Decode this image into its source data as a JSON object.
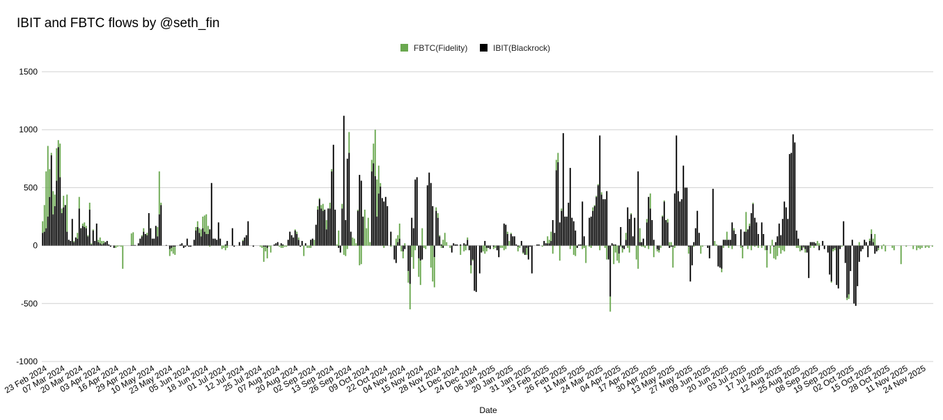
{
  "chart_data": {
    "type": "bar",
    "stacked": true,
    "title": "IBIT and FBTC flows by @seth_fin",
    "xlabel": "Date",
    "ylabel": "",
    "ylim": [
      -1000,
      1500
    ],
    "yticks": [
      -1000,
      -500,
      0,
      500,
      1000,
      1500
    ],
    "grid": true,
    "legend_position": "top-center",
    "x_tick_labels": [
      "23 Feb 2024",
      "07 Mar 2024",
      "20 Mar 2024",
      "03 Apr 2024",
      "16 Apr 2024",
      "29 Apr 2024",
      "10 May 2024",
      "23 May 2024",
      "05 Jun 2024",
      "18 Jun 2024",
      "01 Jul 2024",
      "12 Jul 2024",
      "25 Jul 2024",
      "07 Aug 2024",
      "20 Aug 2024",
      "02 Sep 2024",
      "13 Sep 2024",
      "26 Sep 2024",
      "09 Oct 2024",
      "22 Oct 2024",
      "04 Nov 2024",
      "15 Nov 2024",
      "28 Nov 2024",
      "11 Dec 2024",
      "24 Dec 2024",
      "06 Jan 2025",
      "20 Jan 2025",
      "31 Jan 2025",
      "13 Feb 2025",
      "26 Feb 2025",
      "11 Mar 2025",
      "24 Mar 2025",
      "04 Apr 2025",
      "17 Apr 2025",
      "30 Apr 2025",
      "13 May 2025",
      "27 May 2025",
      "09 Jun 2025",
      "20 Jun 2025",
      "03 Jul 2025",
      "17 Jul 2025",
      "12 Aug 2025",
      "25 Aug 2025",
      "08 Sep 2025",
      "19 Sep 2025",
      "02 Oct 2025",
      "15 Oct 2025",
      "28 Oct 2025",
      "11 Nov 2025",
      "24 Nov 2025"
    ],
    "series": [
      {
        "name": "IBIT(Blackrock)",
        "color": "#000000",
        "values": [
          110,
          120,
          150,
          250,
          420,
          780,
          270,
          340,
          560,
          850,
          590,
          280,
          330,
          350,
          120,
          50,
          40,
          230,
          30,
          70,
          60,
          320,
          150,
          170,
          160,
          150,
          80,
          310,
          10,
          130,
          40,
          190,
          30,
          20,
          10,
          20,
          30,
          40,
          10,
          -10,
          0,
          -20,
          0,
          0,
          0,
          0,
          0,
          0,
          0,
          0,
          0,
          5,
          5,
          5,
          0,
          20,
          60,
          80,
          120,
          100,
          90,
          280,
          150,
          60,
          60,
          170,
          80,
          270,
          350,
          0,
          0,
          5,
          0,
          -30,
          -20,
          -10,
          -10,
          0,
          0,
          10,
          20,
          -20,
          -10,
          60,
          -10,
          -10,
          0,
          50,
          130,
          160,
          110,
          80,
          150,
          120,
          100,
          100,
          140,
          540,
          60,
          60,
          50,
          200,
          60,
          0,
          0,
          10,
          40,
          0,
          0,
          150,
          -10,
          0,
          0,
          30,
          0,
          40,
          70,
          90,
          210,
          0,
          0,
          -10,
          0,
          0,
          0,
          0,
          0,
          -10,
          -10,
          -20,
          0,
          0,
          0,
          10,
          20,
          30,
          0,
          20,
          10,
          0,
          0,
          50,
          120,
          90,
          70,
          130,
          100,
          50,
          -10,
          40,
          0,
          20,
          0,
          0,
          50,
          60,
          0,
          180,
          310,
          400,
          320,
          300,
          310,
          140,
          320,
          320,
          640,
          870,
          310,
          0,
          -20,
          -60,
          320,
          1120,
          220,
          750,
          800,
          120,
          0,
          0,
          0,
          300,
          610,
          560,
          250,
          0,
          0,
          0,
          0,
          640,
          710,
          600,
          250,
          450,
          510,
          410,
          380,
          420,
          340,
          0,
          120,
          0,
          -120,
          -150,
          30,
          60,
          0,
          -50,
          -30,
          0,
          -220,
          -330,
          240,
          150,
          570,
          590,
          -110,
          -130,
          -120,
          0,
          0,
          520,
          630,
          540,
          340,
          -100,
          300,
          240,
          80,
          10,
          -20,
          0,
          0,
          0,
          0,
          -60,
          20,
          10,
          10,
          0,
          10,
          0,
          20,
          10,
          50,
          -40,
          -170,
          -120,
          -390,
          -400,
          0,
          -240,
          -60,
          0,
          40,
          -20,
          -20,
          -30,
          0,
          -10,
          0,
          -40,
          -100,
          0,
          0,
          190,
          180,
          100,
          0,
          100,
          80,
          80,
          10,
          -10,
          0,
          40,
          -60,
          -80,
          -20,
          -120,
          -10,
          -240,
          0,
          0,
          10,
          10,
          0,
          0,
          40,
          20,
          20,
          20,
          40,
          220,
          110,
          650,
          720,
          200,
          300,
          970,
          250,
          250,
          370,
          670,
          240,
          210,
          130,
          -20,
          10,
          10,
          380,
          80,
          0,
          0,
          240,
          250,
          300,
          340,
          420,
          520,
          950,
          440,
          400,
          400,
          470,
          -120,
          -440,
          20,
          10,
          10,
          0,
          -70,
          160,
          -20,
          -30,
          50,
          330,
          230,
          270,
          80,
          240,
          0,
          640,
          30,
          30,
          60,
          0,
          200,
          420,
          320,
          220,
          50,
          0,
          -30,
          -40,
          0,
          250,
          380,
          220,
          200,
          -20,
          -10,
          -10,
          450,
          950,
          470,
          380,
          400,
          690,
          500,
          500,
          -10,
          -310,
          -170,
          30,
          150,
          300,
          110,
          0,
          0,
          0,
          0,
          -20,
          -110,
          0,
          490,
          0,
          0,
          -180,
          -190,
          -200,
          50,
          50,
          50,
          50,
          50,
          200,
          130,
          100,
          0,
          0,
          140,
          -10,
          120,
          120,
          140,
          170,
          280,
          360,
          240,
          200,
          100,
          0,
          200,
          100,
          0,
          -40,
          0,
          0,
          0,
          -10,
          30,
          80,
          190,
          90,
          230,
          380,
          330,
          230,
          790,
          800,
          960,
          890,
          130,
          60,
          0,
          -40,
          -10,
          -30,
          -60,
          -280,
          30,
          30,
          30,
          20,
          0,
          -40,
          0,
          40,
          -30,
          0,
          -60,
          -250,
          -310,
          -30,
          -20,
          -340,
          -370,
          -30,
          0,
          210,
          -150,
          -450,
          -420,
          -220,
          50,
          -500,
          -520,
          -350,
          -140,
          -50,
          -30,
          50,
          30,
          -100,
          40,
          100,
          30,
          -70,
          -50,
          -20
        ],
        "visible_in_legend": true
      },
      {
        "name": "FBTC(Fidelity)",
        "color": "#6aa84f",
        "values": [
          100,
          230,
          490,
          610,
          240,
          20,
          200,
          100,
          280,
          60,
          290,
          40,
          100,
          0,
          320,
          0,
          0,
          0,
          10,
          0,
          50,
          100,
          0,
          20,
          40,
          20,
          10,
          60,
          10,
          10,
          0,
          0,
          20,
          50,
          30,
          20,
          0,
          0,
          0,
          0,
          0,
          0,
          -20,
          -10,
          -5,
          -10,
          -200,
          0,
          0,
          0,
          0,
          100,
          110,
          0,
          0,
          0,
          0,
          10,
          30,
          0,
          20,
          0,
          0,
          0,
          0,
          0,
          80,
          370,
          20,
          0,
          0,
          0,
          0,
          -60,
          -30,
          -60,
          -70,
          0,
          0,
          0,
          0,
          0,
          0,
          0,
          0,
          0,
          0,
          0,
          30,
          50,
          40,
          60,
          100,
          140,
          170,
          70,
          -10,
          0,
          0,
          0,
          0,
          0,
          0,
          -30,
          -20,
          -40,
          -20,
          0,
          0,
          0,
          0,
          0,
          0,
          0,
          0,
          10,
          0,
          0,
          0,
          0,
          0,
          0,
          0,
          0,
          0,
          -10,
          -20,
          -130,
          -40,
          -90,
          -10,
          -60,
          0,
          0,
          0,
          0,
          -10,
          -20,
          -20,
          -10,
          -10,
          0,
          0,
          0,
          0,
          10,
          20,
          20,
          0,
          0,
          -90,
          0,
          -20,
          -20,
          -20,
          0,
          50,
          0,
          30,
          10,
          30,
          60,
          0,
          80,
          0,
          50,
          20,
          0,
          0,
          10,
          130,
          0,
          40,
          -80,
          -90,
          -30,
          180,
          0,
          70,
          60,
          20,
          10,
          -170,
          -160,
          0,
          310,
          150,
          240,
          30,
          100,
          170,
          400,
          320,
          240,
          30,
          0,
          -20,
          0,
          0,
          0,
          -10,
          0,
          0,
          60,
          60,
          130,
          -50,
          -60,
          20,
          0,
          -100,
          -220,
          -100,
          -200,
          -40,
          0,
          -160,
          -210,
          150,
          -20,
          -30,
          0,
          0,
          -190,
          -310,
          -260,
          30,
          40,
          10,
          -20,
          50,
          110,
          30,
          0,
          -20,
          0,
          0,
          0,
          0,
          0,
          -80,
          0,
          -50,
          -40,
          20,
          0,
          -70,
          -10,
          0,
          0,
          0,
          0,
          0,
          -50,
          -70,
          -30,
          0,
          0,
          0,
          -20,
          -20,
          0,
          0,
          -20,
          -20,
          -40,
          -30,
          20,
          40,
          10,
          0,
          0,
          0,
          -40,
          -20,
          0,
          -10,
          0,
          -60,
          0,
          0,
          0,
          0,
          0,
          0,
          0,
          0,
          -10,
          0,
          0,
          60,
          30,
          80,
          -70,
          0,
          90,
          80,
          -130,
          20,
          0,
          0,
          0,
          0,
          -30,
          0,
          -80,
          -90,
          0,
          0,
          0,
          -30,
          -20,
          -150,
          0,
          -10,
          -20,
          30,
          10,
          10,
          10,
          -40,
          20,
          0,
          -20,
          -120,
          0,
          -130,
          0,
          -160,
          -60,
          -130,
          -80,
          -10,
          -40,
          0,
          60,
          -20,
          -60,
          10,
          0,
          0,
          -120,
          -200,
          120,
          -10,
          -10,
          -20,
          30,
          -30,
          130,
          0,
          -100,
          0,
          -20,
          -20,
          -20,
          10,
          10,
          0,
          30,
          30,
          30,
          -180,
          -20,
          0,
          0,
          0,
          0,
          0,
          0,
          0,
          -60,
          0,
          0,
          -10,
          0,
          0,
          0,
          -70,
          -10,
          0,
          0,
          0,
          0,
          0,
          0,
          40,
          10,
          0,
          0,
          -30,
          -20,
          0,
          70,
          -20,
          0,
          -30,
          20,
          0,
          0,
          0,
          -20,
          -100,
          0,
          170,
          -30,
          20,
          -40,
          10,
          -10,
          0,
          -20,
          0,
          -20,
          0,
          -40,
          -150,
          0,
          -70,
          50,
          -100,
          -120,
          -90,
          -20,
          -70,
          -40,
          -50,
          0,
          0,
          0,
          0,
          0,
          0,
          -20,
          -20,
          -50,
          0,
          -10,
          -30,
          0,
          0,
          -20,
          0,
          -20,
          0,
          40,
          20,
          0,
          0,
          0,
          0,
          0,
          0,
          -10,
          -20,
          -20,
          0,
          0,
          0,
          -10,
          0,
          0,
          -20,
          -40,
          0,
          0,
          0,
          0,
          0,
          30,
          0,
          0,
          0,
          0,
          0,
          20,
          40,
          30,
          100,
          0,
          -20,
          0,
          -30,
          10,
          -50,
          0,
          0,
          0,
          -20,
          -40,
          0,
          0,
          0,
          -160,
          0,
          0,
          -10,
          0,
          0,
          0,
          -30,
          0,
          -40,
          -20,
          -30,
          -20,
          0,
          -20,
          -10,
          -20,
          0,
          -10
        ],
        "visible_in_legend": true
      }
    ]
  }
}
